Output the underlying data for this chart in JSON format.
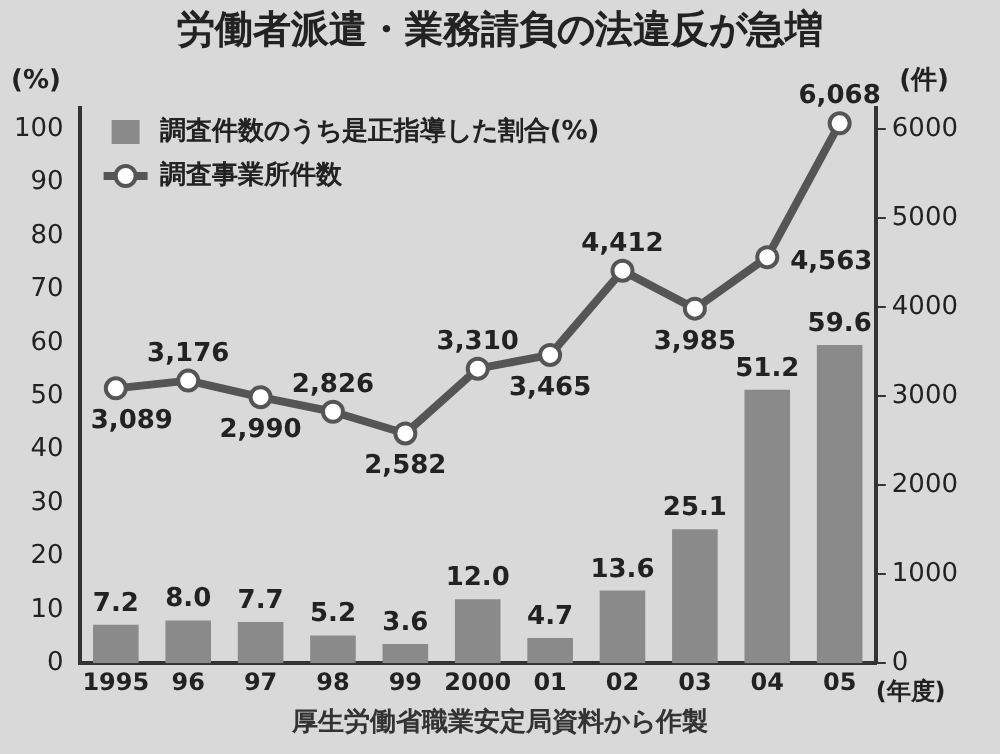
{
  "chart_data": {
    "type": "bar",
    "title": "労働者派遣・業務請負の法違反が急増",
    "ylabel": "(%)",
    "y2label": "(件)",
    "xlabel": "(年度)",
    "categories": [
      "1995",
      "96",
      "97",
      "98",
      "99",
      "2000",
      "01",
      "02",
      "03",
      "04",
      "05"
    ],
    "series": [
      {
        "name": "調査件数のうち是正指導した割合(%)",
        "color": "#8a8a8a",
        "values": [
          7.2,
          8.0,
          7.7,
          5.2,
          3.6,
          12.0,
          4.7,
          13.6,
          25.1,
          51.2,
          59.6
        ],
        "value_labels": [
          "7.2",
          "8.0",
          "7.7",
          "5.2",
          "3.6",
          "12.0",
          "4.7",
          "13.6",
          "25.1",
          "51.2",
          "59.6"
        ]
      },
      {
        "name": "調査事業所件数",
        "type": "line",
        "axis": "y2",
        "color": "#555555",
        "marker": "circle",
        "values": [
          3089,
          3176,
          2990,
          2826,
          2582,
          3310,
          3465,
          4412,
          3985,
          4563,
          6068
        ],
        "value_labels": [
          "3,089",
          "3,176",
          "2,990",
          "2,826",
          "2,582",
          "3,310",
          "3,465",
          "4,412",
          "3,985",
          "4,563",
          "6,068"
        ]
      }
    ],
    "ylim": [
      0,
      104
    ],
    "yticks": [
      0,
      10,
      20,
      30,
      40,
      50,
      60,
      70,
      80,
      90,
      100
    ],
    "y2lim": [
      0,
      6240
    ],
    "y2ticks": [
      0,
      1000,
      2000,
      3000,
      4000,
      5000,
      6000
    ],
    "grid": false,
    "legend": "top left",
    "annotations": [
      "厚生労働省職業安定局資料から作製"
    ]
  }
}
